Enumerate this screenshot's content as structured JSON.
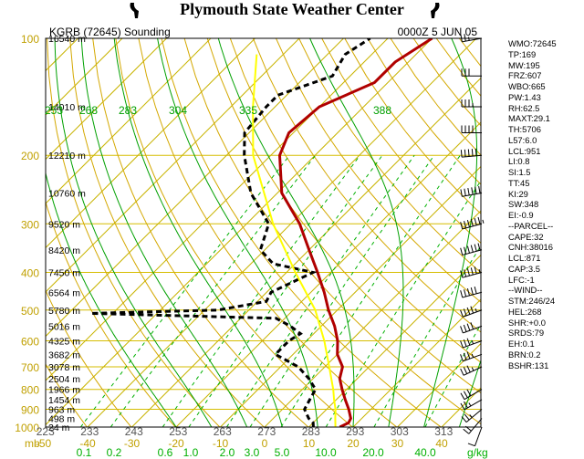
{
  "header": {
    "title": "Plymouth State Weather Center",
    "station": "KGRB (72645) Sounding",
    "time": "0000Z  5 JUN 05",
    "left_logo": "lightning-logo",
    "right_logo": "lightning-logo"
  },
  "colors": {
    "frame": "#000000",
    "isobar": "#d6bd00",
    "skewed_isotherm": "#c8b400",
    "dry_adiabat": "#d4a800",
    "moist_adiabat": "#00a000",
    "mixing_ratio": "#00b000",
    "temperature": "#b00000",
    "dewpoint": "#000000",
    "parcel": "#ffff00",
    "pressure_label": "#c0a000",
    "bottom_axis_label": "#c0a000",
    "theta_label": "#00a000"
  },
  "chart_data": {
    "type": "line",
    "chart_kind": "skew-T log-P",
    "y_axis": {
      "scale": "log",
      "range": [
        100,
        1000
      ],
      "unit": "mb",
      "ticks": [
        100,
        200,
        300,
        400,
        500,
        600,
        700,
        800,
        900,
        1000
      ]
    },
    "pressure_labels": [
      "100",
      "200",
      "300",
      "400",
      "500",
      "600",
      "700",
      "800",
      "900",
      "1000"
    ],
    "bottom_label_mb": "mb",
    "height_labels": [
      {
        "p": 100,
        "text": "16540 m"
      },
      {
        "p": 150,
        "text": "14010 m"
      },
      {
        "p": 200,
        "text": "12210 m"
      },
      {
        "p": 250,
        "text": "10760 m"
      },
      {
        "p": 300,
        "text": "9520 m"
      },
      {
        "p": 350,
        "text": "8420 m"
      },
      {
        "p": 400,
        "text": "7450 m"
      },
      {
        "p": 450,
        "text": "6564 m"
      },
      {
        "p": 500,
        "text": "5780 m"
      },
      {
        "p": 550,
        "text": "5016 m"
      },
      {
        "p": 600,
        "text": "4325 m"
      },
      {
        "p": 650,
        "text": "3682 m"
      },
      {
        "p": 700,
        "text": "3078 m"
      },
      {
        "p": 750,
        "text": "2504 m"
      },
      {
        "p": 800,
        "text": "1966 m"
      },
      {
        "p": 850,
        "text": "1454 m"
      },
      {
        "p": 900,
        "text": "963 m"
      },
      {
        "p": 950,
        "text": "498 m"
      },
      {
        "p": 1000,
        "text": "24 m"
      }
    ],
    "temp_axis_labels": [
      "-50",
      "-40",
      "-30",
      "-20",
      "-10",
      "0",
      "10",
      "20",
      "30",
      "40"
    ],
    "theta_bottom_labels": [
      "223",
      "233",
      "243",
      "253",
      "263",
      "273",
      "283",
      "293",
      "303",
      "313"
    ],
    "theta_top_labels": [
      {
        "p": 160,
        "text": "253"
      },
      {
        "p": 160,
        "text": "268"
      },
      {
        "p": 160,
        "text": "283"
      },
      {
        "p": 160,
        "text": "304"
      },
      {
        "p": 160,
        "text": "335"
      },
      {
        "p": 160,
        "text": "388"
      }
    ],
    "mixing_ratio_labels": [
      "0.1",
      "0.2",
      "0.6",
      "1.0",
      "2.0",
      "3.0",
      "5.0",
      "10.0",
      "20.0",
      "40.0"
    ],
    "mixing_ratio_unit": "g/kg",
    "series": [
      {
        "name": "temperature",
        "points": [
          [
            1000,
            17
          ],
          [
            975,
            18
          ],
          [
            950,
            17.5
          ],
          [
            900,
            15
          ],
          [
            850,
            12
          ],
          [
            800,
            9
          ],
          [
            750,
            6
          ],
          [
            700,
            4
          ],
          [
            650,
            0
          ],
          [
            600,
            -3
          ],
          [
            550,
            -7
          ],
          [
            500,
            -12
          ],
          [
            450,
            -17
          ],
          [
            400,
            -23
          ],
          [
            350,
            -30
          ],
          [
            300,
            -38
          ],
          [
            250,
            -49
          ],
          [
            200,
            -58
          ],
          [
            175,
            -61
          ],
          [
            150,
            -60
          ],
          [
            130,
            -53
          ],
          [
            115,
            -53
          ],
          [
            100,
            -50
          ]
        ]
      },
      {
        "name": "dewpoint",
        "points": [
          [
            1000,
            11
          ],
          [
            975,
            10
          ],
          [
            950,
            8
          ],
          [
            900,
            5
          ],
          [
            850,
            4
          ],
          [
            800,
            3
          ],
          [
            750,
            -1
          ],
          [
            700,
            -6
          ],
          [
            650,
            -14
          ],
          [
            600,
            -14
          ],
          [
            575,
            -13
          ],
          [
            550,
            -17
          ],
          [
            525,
            -22
          ],
          [
            510,
            -65
          ],
          [
            500,
            -37
          ],
          [
            475,
            -28
          ],
          [
            450,
            -29
          ],
          [
            400,
            -24
          ],
          [
            380,
            -35
          ],
          [
            350,
            -41
          ],
          [
            300,
            -45
          ],
          [
            250,
            -56
          ],
          [
            200,
            -66
          ],
          [
            175,
            -71
          ],
          [
            150,
            -72
          ],
          [
            140,
            -72
          ],
          [
            125,
            -64
          ],
          [
            110,
            -66
          ],
          [
            100,
            -64
          ]
        ]
      },
      {
        "name": "parcel",
        "points": [
          [
            1000,
            16
          ],
          [
            950,
            14
          ],
          [
            900,
            12
          ],
          [
            850,
            9.5
          ],
          [
            800,
            7
          ],
          [
            700,
            1
          ],
          [
            600,
            -6
          ],
          [
            500,
            -15
          ],
          [
            400,
            -28
          ],
          [
            300,
            -44
          ],
          [
            200,
            -64
          ],
          [
            150,
            -75
          ],
          [
            110,
            -86
          ]
        ]
      }
    ],
    "wind_barbs": [
      {
        "p": 1000,
        "dir": 200,
        "kt": 10
      },
      {
        "p": 950,
        "dir": 220,
        "kt": 20
      },
      {
        "p": 900,
        "dir": 230,
        "kt": 25
      },
      {
        "p": 850,
        "dir": 240,
        "kt": 25
      },
      {
        "p": 800,
        "dir": 240,
        "kt": 30
      },
      {
        "p": 700,
        "dir": 245,
        "kt": 35
      },
      {
        "p": 650,
        "dir": 250,
        "kt": 35
      },
      {
        "p": 600,
        "dir": 250,
        "kt": 35
      },
      {
        "p": 550,
        "dir": 250,
        "kt": 40
      },
      {
        "p": 500,
        "dir": 250,
        "kt": 45
      },
      {
        "p": 450,
        "dir": 255,
        "kt": 50
      },
      {
        "p": 400,
        "dir": 255,
        "kt": 55
      },
      {
        "p": 350,
        "dir": 255,
        "kt": 60
      },
      {
        "p": 300,
        "dir": 255,
        "kt": 65
      },
      {
        "p": 250,
        "dir": 260,
        "kt": 60
      },
      {
        "p": 200,
        "dir": 265,
        "kt": 50
      },
      {
        "p": 175,
        "dir": 270,
        "kt": 40
      },
      {
        "p": 150,
        "dir": 270,
        "kt": 35
      },
      {
        "p": 125,
        "dir": 270,
        "kt": 30
      },
      {
        "p": 100,
        "dir": 260,
        "kt": 25
      }
    ]
  },
  "stats": [
    "WMO:72645",
    "TP:169",
    "MW:195",
    "FRZ:607",
    "WBO:665",
    "PW:1.43",
    "RH:62.5",
    "MAXT:29.1",
    "TH:5706",
    "L57:6.0",
    "LCL:951",
    "LI:0.8",
    "SI:1.5",
    "TT:45",
    "KI:29",
    "SW:348",
    "EI:-0.9",
    "--PARCEL--",
    "CAPE:32",
    "CNH:38016",
    "LCL:871",
    "CAP:3.5",
    "LFC:-1",
    "--WIND--",
    "STM:246/24",
    "HEL:268",
    "SHR:+0.0",
    "SRDS:79",
    "EH:0.1",
    "BRN:0.2",
    "BSHR:131"
  ]
}
